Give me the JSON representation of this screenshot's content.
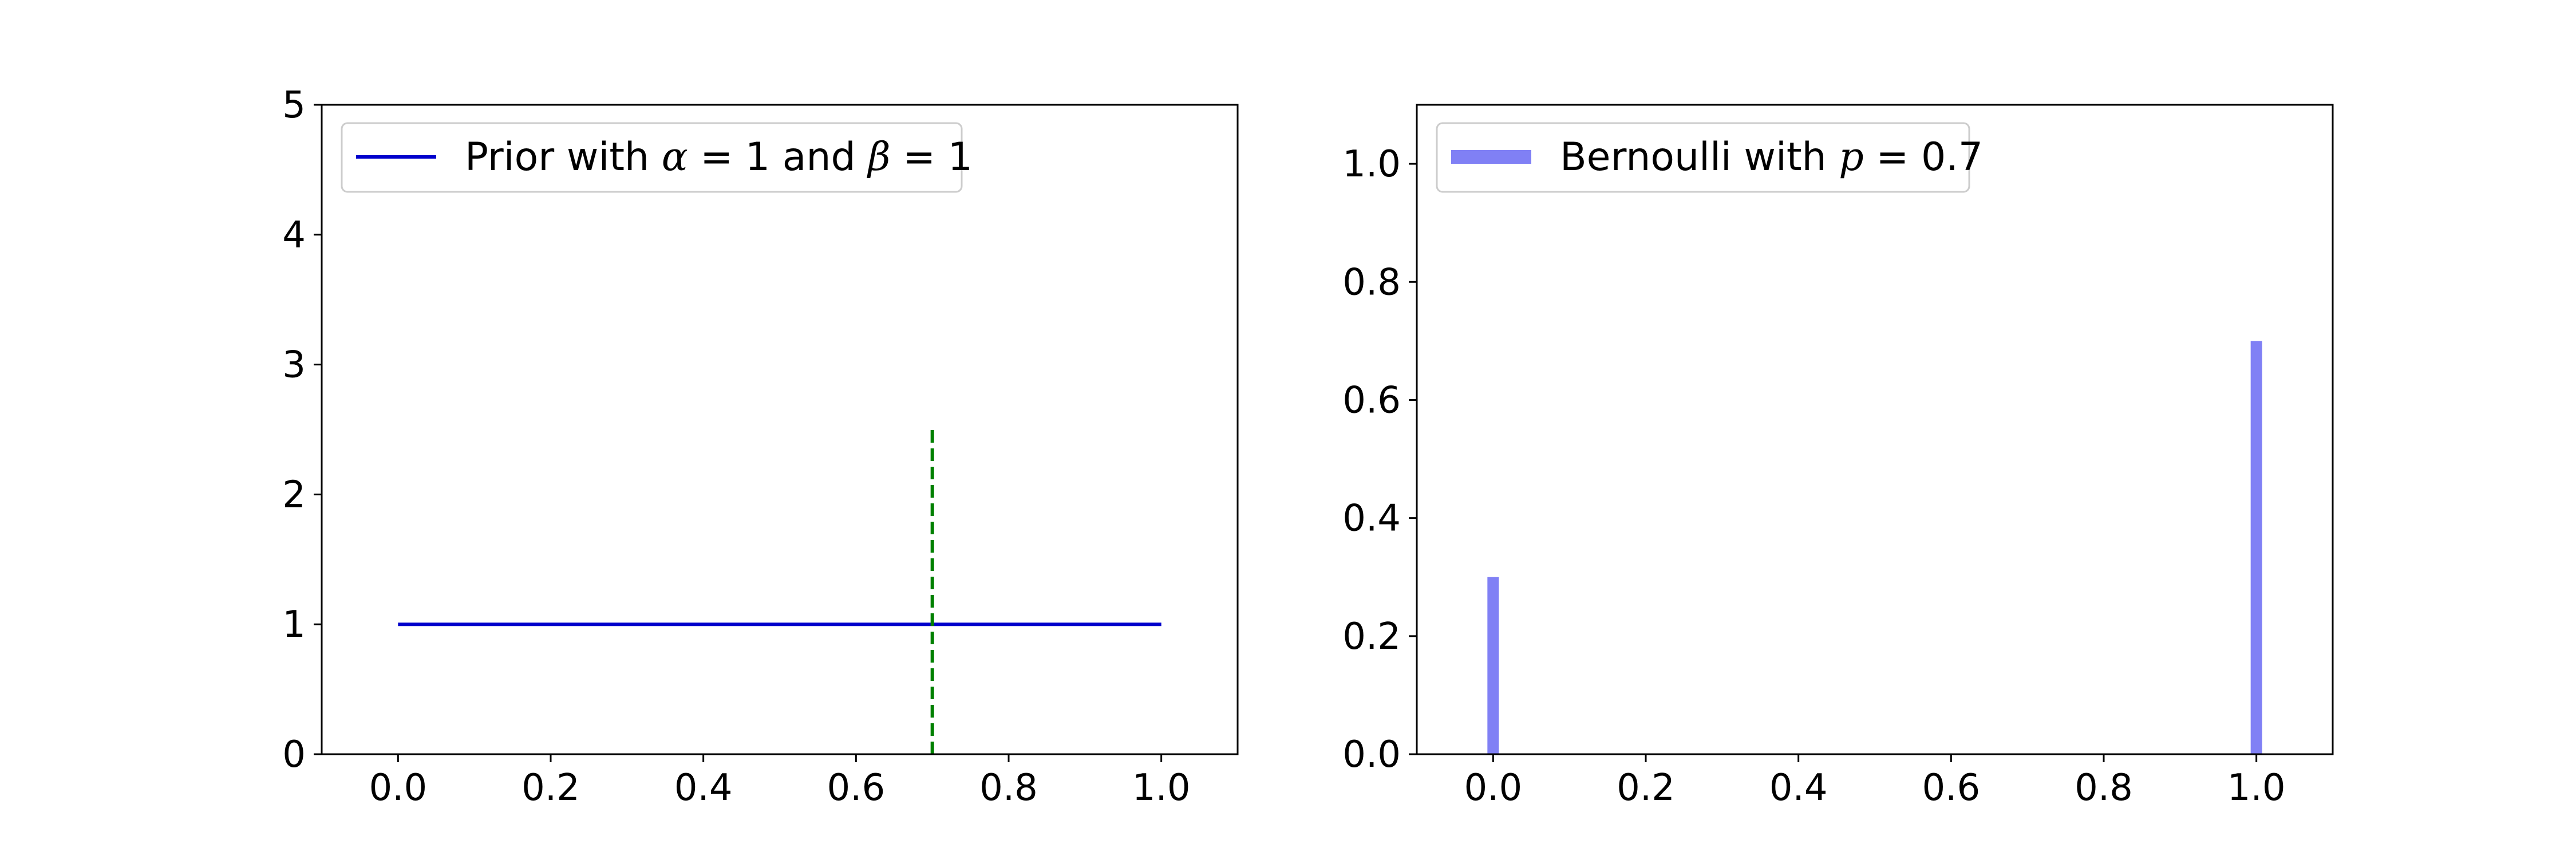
{
  "chart_data": [
    {
      "type": "line",
      "title": "",
      "xlabel": "",
      "ylabel": "",
      "xlim": [
        -0.1,
        1.1
      ],
      "ylim": [
        0,
        5
      ],
      "x_ticks": [
        0.0,
        0.2,
        0.4,
        0.6,
        0.8,
        1.0
      ],
      "x_tick_labels": [
        "0.0",
        "0.2",
        "0.4",
        "0.6",
        "0.8",
        "1.0"
      ],
      "y_ticks": [
        0,
        1,
        2,
        3,
        4,
        5
      ],
      "y_tick_labels": [
        "0",
        "1",
        "2",
        "3",
        "4",
        "5"
      ],
      "grid": false,
      "legend_position": "top-left",
      "series": [
        {
          "name": "Prior with α = 1 and β = 1",
          "color": "#0000cc",
          "x": [
            0.0,
            1.0
          ],
          "y": [
            1.0,
            1.0
          ]
        }
      ],
      "annotations": [
        {
          "type": "vline",
          "x": 0.7,
          "y_from": 0,
          "y_to": 2.5,
          "color": "#008000",
          "style": "dashed"
        }
      ],
      "legend": {
        "prefix": "Prior with ",
        "alpha_symbol": "α",
        "alpha_rest": " = 1 and ",
        "beta_symbol": "β",
        "beta_rest": " = 1"
      }
    },
    {
      "type": "bar",
      "title": "",
      "xlabel": "",
      "ylabel": "",
      "xlim": [
        -0.1,
        1.1
      ],
      "ylim": [
        0,
        1.1
      ],
      "x_ticks": [
        0.0,
        0.2,
        0.4,
        0.6,
        0.8,
        1.0
      ],
      "x_tick_labels": [
        "0.0",
        "0.2",
        "0.4",
        "0.6",
        "0.8",
        "1.0"
      ],
      "y_ticks": [
        0.0,
        0.2,
        0.4,
        0.6,
        0.8,
        1.0
      ],
      "y_tick_labels": [
        "0.0",
        "0.2",
        "0.4",
        "0.6",
        "0.8",
        "1.0"
      ],
      "grid": false,
      "legend_position": "top-left",
      "series": [
        {
          "name": "Bernoulli with p = 0.7",
          "color": "#8080f5",
          "x": [
            0,
            1
          ],
          "values": [
            0.3,
            0.7
          ]
        }
      ],
      "legend": {
        "prefix": "Bernoulli with ",
        "p_symbol": "p",
        "p_rest": " = 0.7"
      }
    }
  ]
}
